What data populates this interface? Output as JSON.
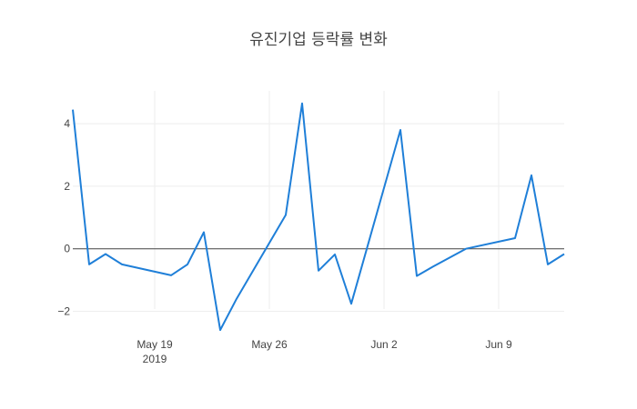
{
  "chart_data": {
    "type": "line",
    "title": "유진기업 등락률 변화",
    "xlabel": "",
    "ylabel": "",
    "x": [
      "2019-05-14",
      "2019-05-15",
      "2019-05-16",
      "2019-05-17",
      "2019-05-20",
      "2019-05-21",
      "2019-05-22",
      "2019-05-23",
      "2019-05-24",
      "2019-05-27",
      "2019-05-28",
      "2019-05-29",
      "2019-05-30",
      "2019-05-31",
      "2019-06-03",
      "2019-06-04",
      "2019-06-05",
      "2019-06-07",
      "2019-06-10",
      "2019-06-11",
      "2019-06-12",
      "2019-06-13"
    ],
    "series": [
      {
        "values": [
          4.45,
          -0.5,
          -0.17,
          -0.5,
          -0.85,
          -0.5,
          0.53,
          -2.6,
          -1.6,
          1.08,
          4.65,
          -0.7,
          -0.18,
          -1.76,
          3.8,
          -0.87,
          -0.57,
          0.0,
          0.34,
          2.35,
          -0.5,
          -0.17
        ]
      }
    ],
    "xlim": [
      "2019-05-14",
      "2019-06-13"
    ],
    "ylim": [
      -2.8,
      5.05
    ],
    "xticks": [
      {
        "date": "2019-05-19",
        "label": "May 19",
        "sublabel": "2019"
      },
      {
        "date": "2019-05-26",
        "label": "May 26",
        "sublabel": ""
      },
      {
        "date": "2019-06-02",
        "label": "Jun 2",
        "sublabel": ""
      },
      {
        "date": "2019-06-09",
        "label": "Jun 9",
        "sublabel": ""
      }
    ],
    "yticks": [
      {
        "value": 4,
        "label": "4"
      },
      {
        "value": 2,
        "label": "2"
      },
      {
        "value": 0,
        "label": "0"
      },
      {
        "value": -2,
        "label": "−2"
      }
    ],
    "grid": true,
    "legend": "none",
    "colors": {
      "line": "#1f7fd8",
      "grid": "#eeeeee",
      "zero": "#444444",
      "text": "#444444"
    }
  }
}
